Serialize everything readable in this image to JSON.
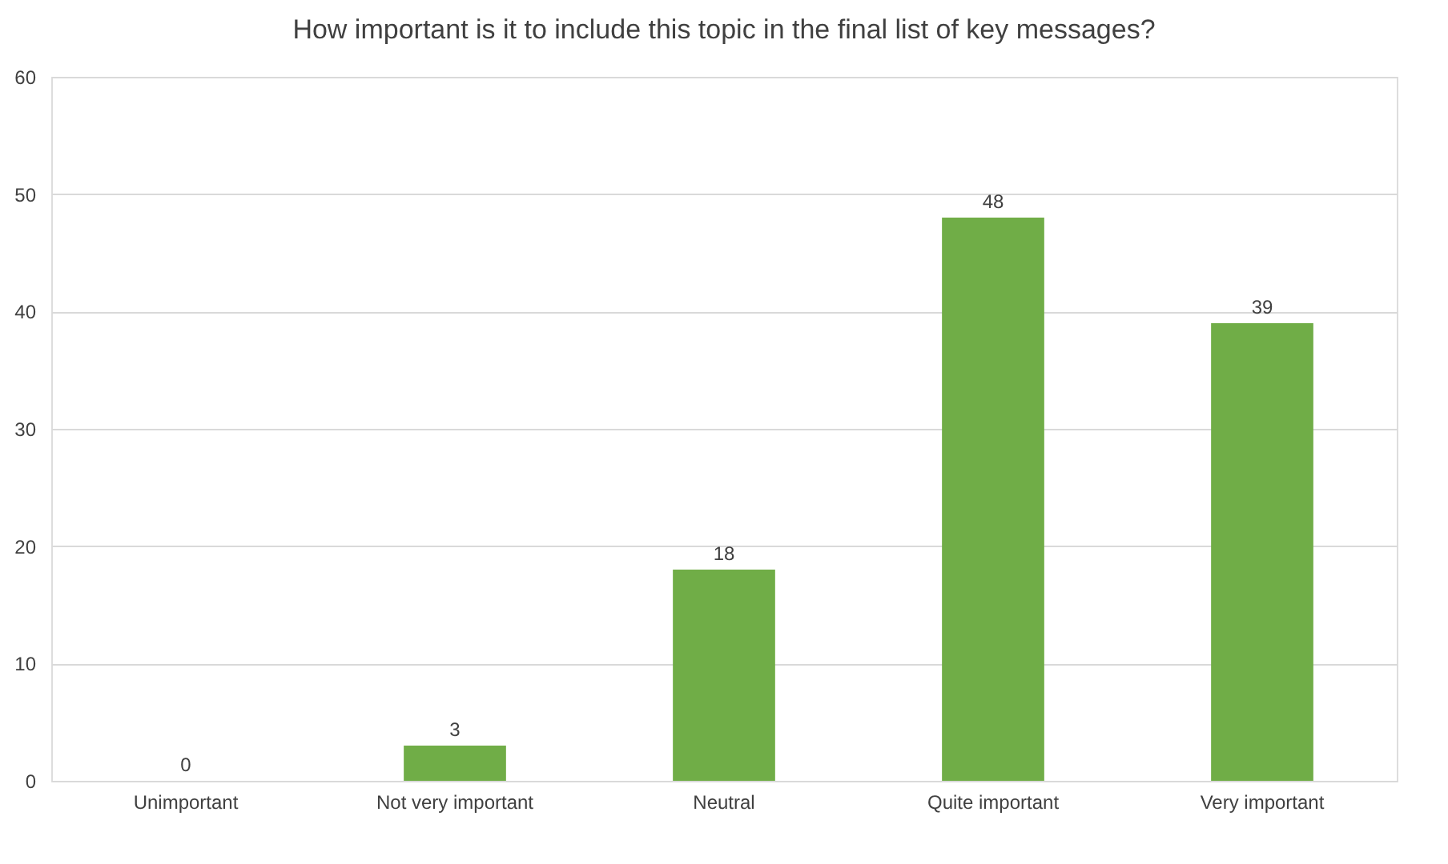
{
  "chart_data": {
    "type": "bar",
    "title": "How important is it to include this topic in the final list of key messages?",
    "categories": [
      "Unimportant",
      "Not very important",
      "Neutral",
      "Quite important",
      "Very important"
    ],
    "values": [
      0,
      3,
      18,
      48,
      39
    ],
    "color": "#70ad47",
    "ylim": [
      0,
      60
    ],
    "yticks": [
      0,
      10,
      20,
      30,
      40,
      50,
      60
    ],
    "grid": "y",
    "data_labels": true
  }
}
